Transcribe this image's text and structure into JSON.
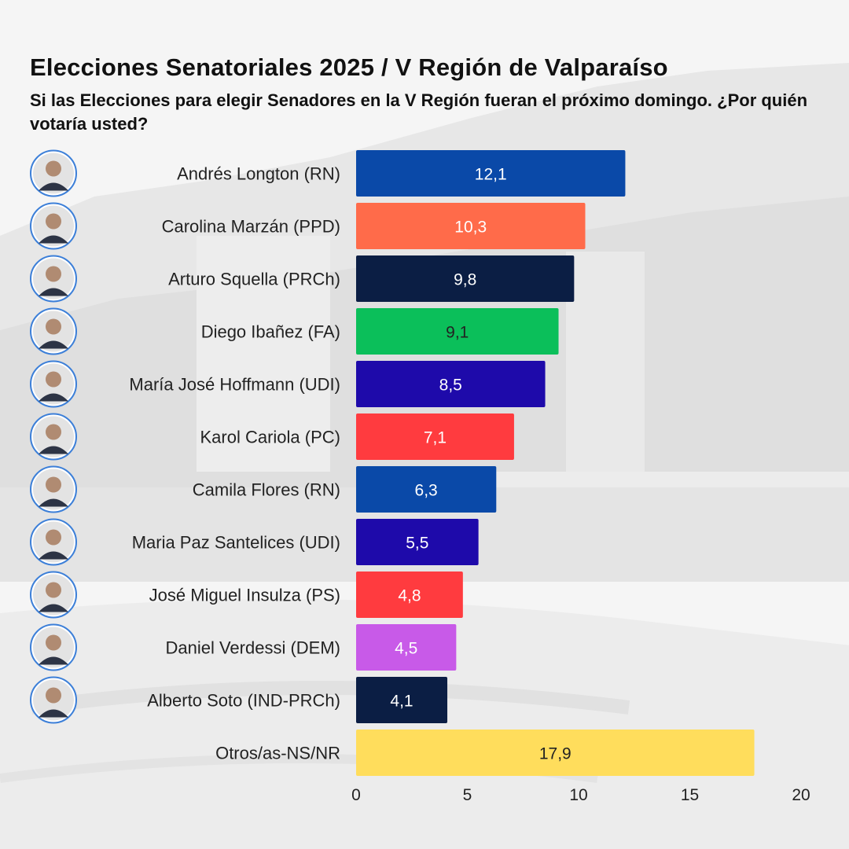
{
  "title": "Elecciones Senatoriales 2025 / V Región de Valparaíso",
  "subtitle": "Si las Elecciones para elegir Senadores en la V Región fueran el próximo domingo. ¿Por quién votaría usted?",
  "chart_data": {
    "type": "bar",
    "orientation": "horizontal",
    "categories": [
      "Andrés Longton (RN)",
      "Carolina Marzán (PPD)",
      "Arturo Squella (PRCh)",
      "Diego Ibañez (FA)",
      "María José Hoffmann (UDI)",
      "Karol Cariola (PC)",
      "Camila Flores (RN)",
      "Maria Paz Santelices (UDI)",
      "José Miguel Insulza (PS)",
      "Daniel Verdessi (DEM)",
      "Alberto Soto (IND-PRCh)",
      "Otros/as-NS/NR"
    ],
    "values": [
      12.1,
      10.3,
      9.8,
      9.1,
      8.5,
      7.1,
      6.3,
      5.5,
      4.8,
      4.5,
      4.1,
      17.9
    ],
    "value_labels": [
      "12,1",
      "10,3",
      "9,8",
      "9,1",
      "8,5",
      "7,1",
      "6,3",
      "5,5",
      "4,8",
      "4,5",
      "4,1",
      "17,9"
    ],
    "colors": [
      "#0a49a8",
      "#ff6b4a",
      "#0b1e44",
      "#0bbf5a",
      "#1e0aaa",
      "#ff3b3f",
      "#0a49a8",
      "#1e0aaa",
      "#ff3b3f",
      "#c85ae8",
      "#0b1e44",
      "#ffdd5c"
    ],
    "value_label_colors": [
      "#ffffff",
      "#ffffff",
      "#ffffff",
      "#222222",
      "#ffffff",
      "#ffffff",
      "#ffffff",
      "#ffffff",
      "#ffffff",
      "#ffffff",
      "#ffffff",
      "#222222"
    ],
    "has_photo": [
      true,
      true,
      true,
      true,
      true,
      true,
      true,
      true,
      true,
      true,
      true,
      false
    ],
    "xlim": [
      0,
      20
    ],
    "xticks": [
      0,
      5,
      10,
      15,
      20
    ],
    "xtick_labels": [
      "0",
      "5",
      "10",
      "15",
      "20"
    ],
    "grid": false,
    "legend": "none"
  }
}
